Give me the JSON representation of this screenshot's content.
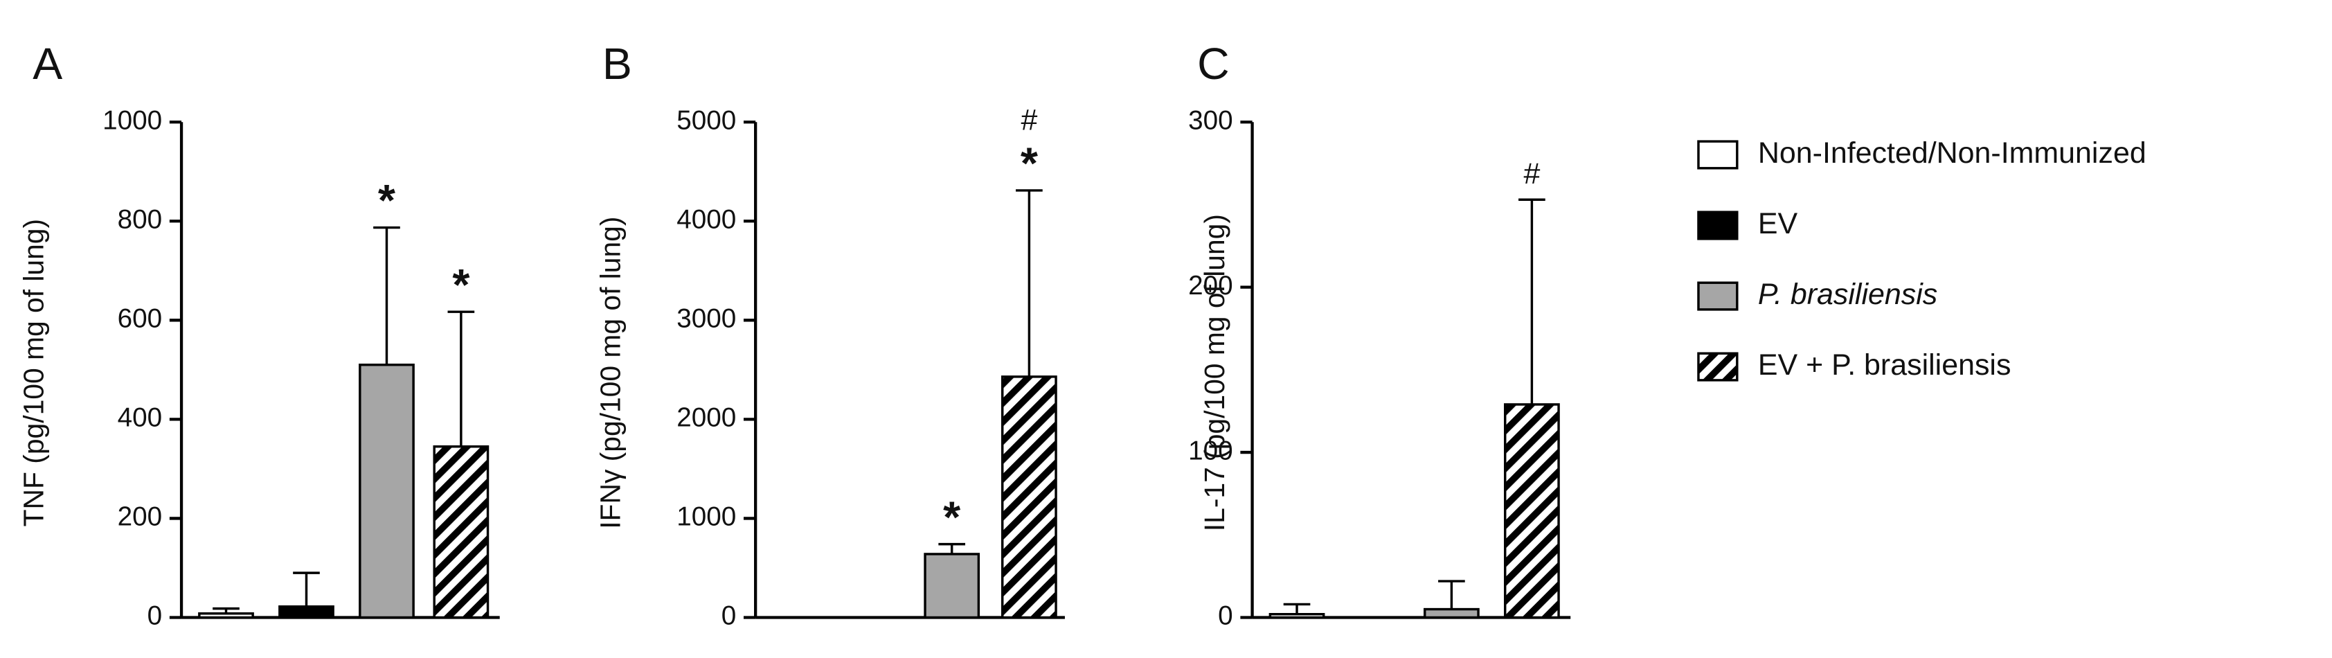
{
  "chart_data": [
    {
      "type": "bar",
      "panel": "A",
      "ylabel": "TNF (pg/100 mg of lung)",
      "values": [
        8,
        22,
        510,
        345
      ],
      "errors": [
        10,
        68,
        277,
        272
      ],
      "markers": [
        null,
        null,
        [
          "*"
        ],
        [
          "*"
        ]
      ],
      "ylim": [
        0,
        1000
      ],
      "yticks": [
        0,
        200,
        400,
        600,
        800,
        1000
      ]
    },
    {
      "type": "bar",
      "panel": "B",
      "ylabel": "IFNγ (pg/100 mg of lung)",
      "values": [
        0,
        0,
        640,
        2430
      ],
      "errors": [
        0,
        0,
        100,
        1880
      ],
      "markers": [
        null,
        null,
        [
          "*"
        ],
        [
          "#",
          "*"
        ]
      ],
      "ylim": [
        0,
        5000
      ],
      "yticks": [
        0,
        1000,
        2000,
        3000,
        4000,
        5000
      ]
    },
    {
      "type": "bar",
      "panel": "C",
      "ylabel": "IL-17 (pg/100 mg of lung)",
      "values": [
        2,
        0,
        5,
        129
      ],
      "errors": [
        6,
        0,
        17,
        124
      ],
      "markers": [
        null,
        null,
        null,
        [
          "#"
        ]
      ],
      "ylim": [
        0,
        300
      ],
      "yticks": [
        0,
        100,
        200,
        300
      ]
    }
  ],
  "legend": [
    {
      "name": "Non-Infected/Non-Immunized",
      "fill": "#ffffff"
    },
    {
      "name": "EV",
      "fill": "#000000"
    },
    {
      "name": "P. brasiliensis",
      "fill": "#a6a6a6",
      "italic": true
    },
    {
      "name": "EV + P. brasiliensis",
      "fill": "hatch"
    }
  ]
}
